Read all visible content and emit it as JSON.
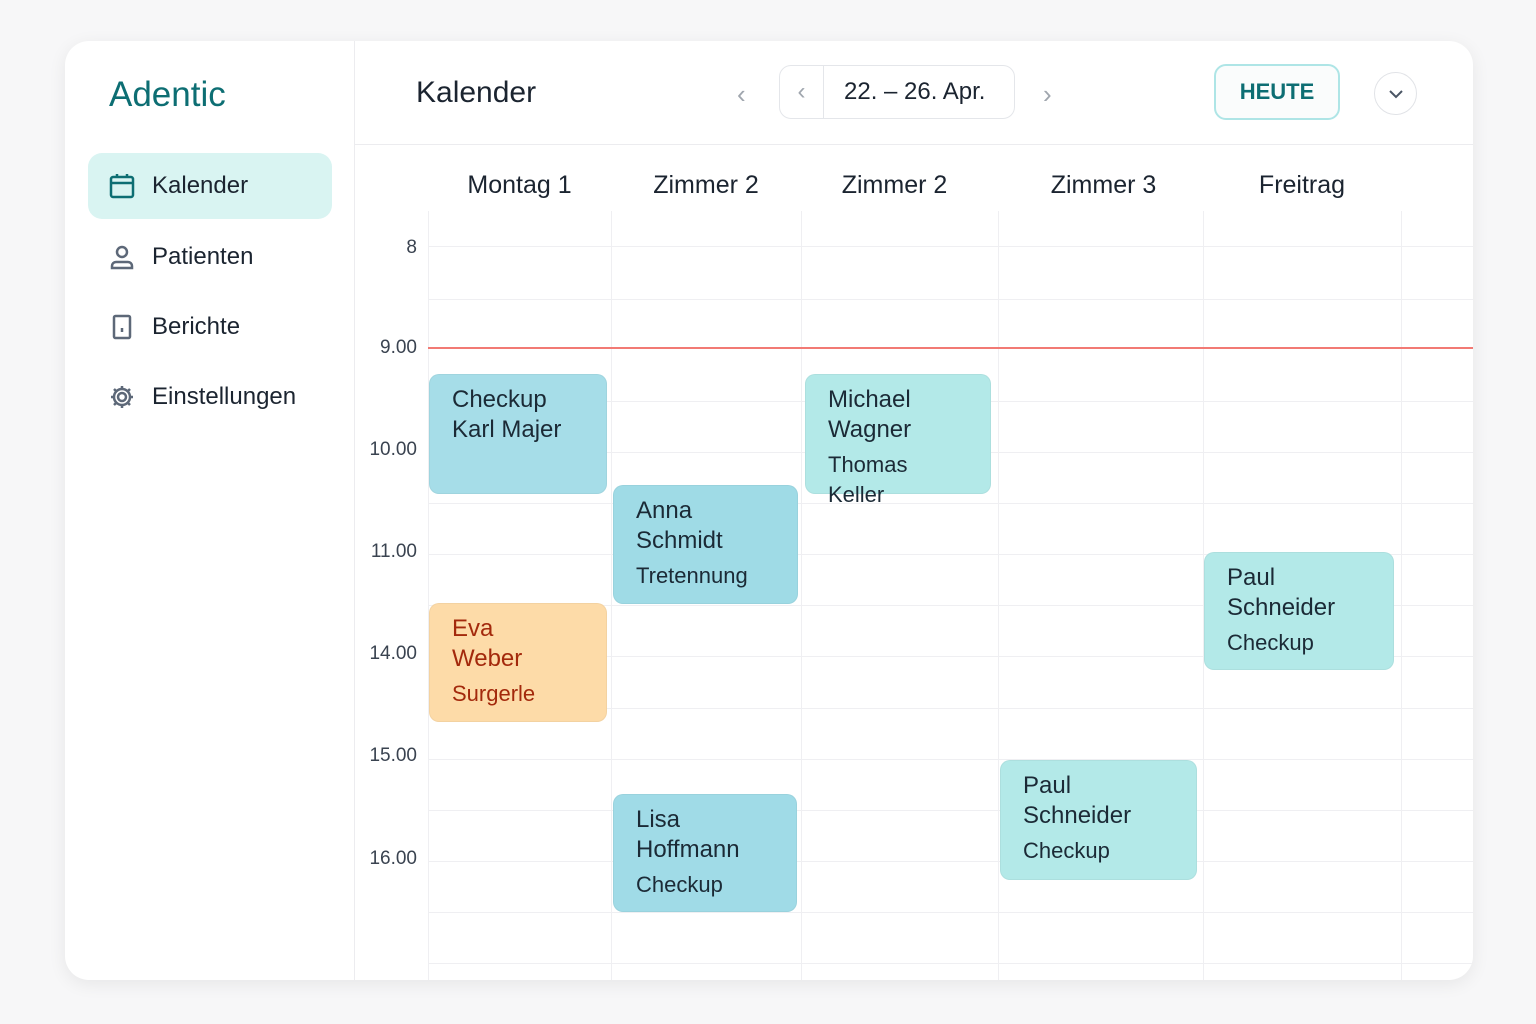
{
  "app": {
    "logo": "Adentic"
  },
  "sidebar": {
    "items": [
      {
        "label": "Kalender",
        "icon": "calendar-icon",
        "active": true
      },
      {
        "label": "Patienten",
        "icon": "user-icon"
      },
      {
        "label": "Berichte",
        "icon": "report-icon"
      },
      {
        "label": "Einstellungen",
        "icon": "gear-icon"
      }
    ]
  },
  "header": {
    "title": "Kalender",
    "date_range": "22. – 26. Apr.",
    "today_label": "HEUTE",
    "prev_icon": "chevron-left-icon",
    "next_icon": "chevron-right-icon",
    "dropdown_icon": "chevron-down-icon"
  },
  "columns": [
    "Montag 1",
    "Zimmer 2",
    "Zimmer 2",
    "Zimmer 3",
    "Freitrag"
  ],
  "times": [
    "8",
    "9.00",
    "10.00",
    "11.00",
    "14.00",
    "15.00",
    "16.00"
  ],
  "events": [
    {
      "title": "Checkup",
      "sub": "Karl Majer",
      "color": "#a6dde8"
    },
    {
      "title": "Anna Schmidt",
      "sub": "Tretennung",
      "color": "#9fdbe6"
    },
    {
      "title": "Michael Wagner",
      "sub": "Thomas Keller",
      "color": "#b3e9e8"
    },
    {
      "title": "Eva Weber",
      "sub": "Surgerle",
      "color": "#fddba8"
    },
    {
      "title": "Paul Schneider",
      "sub": "Checkup",
      "color": "#b3e9e8"
    },
    {
      "title": "Paul Schneider",
      "sub": "Checkup",
      "color": "#b3e9e8"
    },
    {
      "title": "Lisa Hoffmann",
      "sub": "Checkup",
      "color": "#a0dbe7"
    }
  ],
  "colors": {
    "accent": "#0d6e73",
    "now_line": "#f27a74"
  }
}
